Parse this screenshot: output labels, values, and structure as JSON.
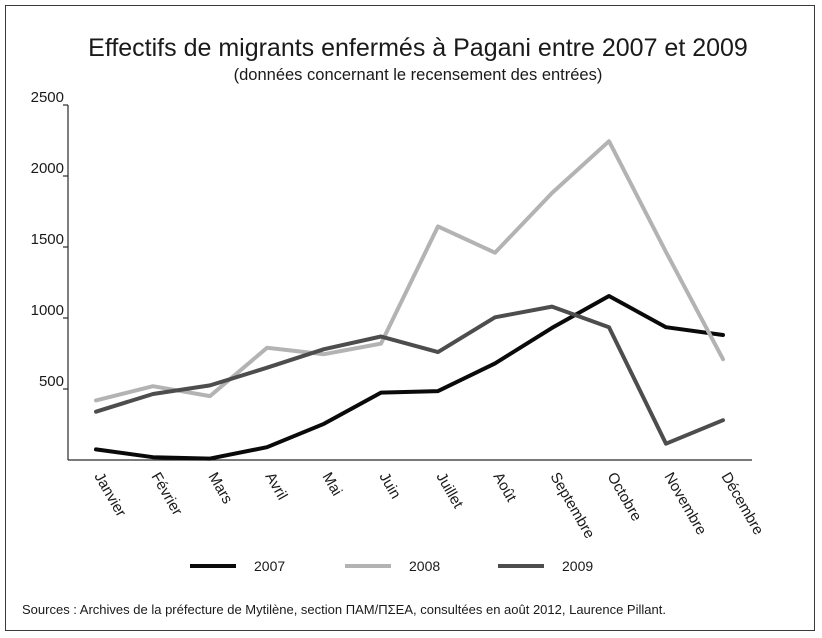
{
  "chart_data": {
    "type": "line",
    "title": "Effectifs de migrants enfermés à Pagani entre 2007 et 2009",
    "subtitle": "(données concernant le recensement des entrées)",
    "xlabel": "",
    "ylabel": "",
    "categories": [
      "Janvier",
      "Février",
      "Mars",
      "Avril",
      "Mai",
      "Juin",
      "Juillet",
      "Août",
      "Septembre",
      "Octobre",
      "Novembre",
      "Décembre"
    ],
    "ylim": [
      0,
      2500
    ],
    "yticks": [
      "500",
      "1000",
      "1500",
      "2000",
      "2500"
    ],
    "grid": false,
    "legend_position": "bottom",
    "series": [
      {
        "name": "2007",
        "color": "#0a0a0a",
        "values": [
          75,
          20,
          10,
          90,
          255,
          475,
          485,
          680,
          930,
          1155,
          935,
          880
        ]
      },
      {
        "name": "2008",
        "color": "#b3b3b3",
        "values": [
          420,
          520,
          450,
          790,
          745,
          820,
          1645,
          1460,
          1880,
          2245,
          1465,
          710
        ]
      },
      {
        "name": "2009",
        "color": "#4d4d4d",
        "values": [
          340,
          465,
          525,
          650,
          780,
          870,
          760,
          1005,
          1080,
          935,
          115,
          280
        ]
      }
    ]
  },
  "source": "Sources : Archives de la préfecture de Mytilène, section ΠΑΜ/ΠΣΕΑ, consultées en août 2012, Laurence Pillant."
}
